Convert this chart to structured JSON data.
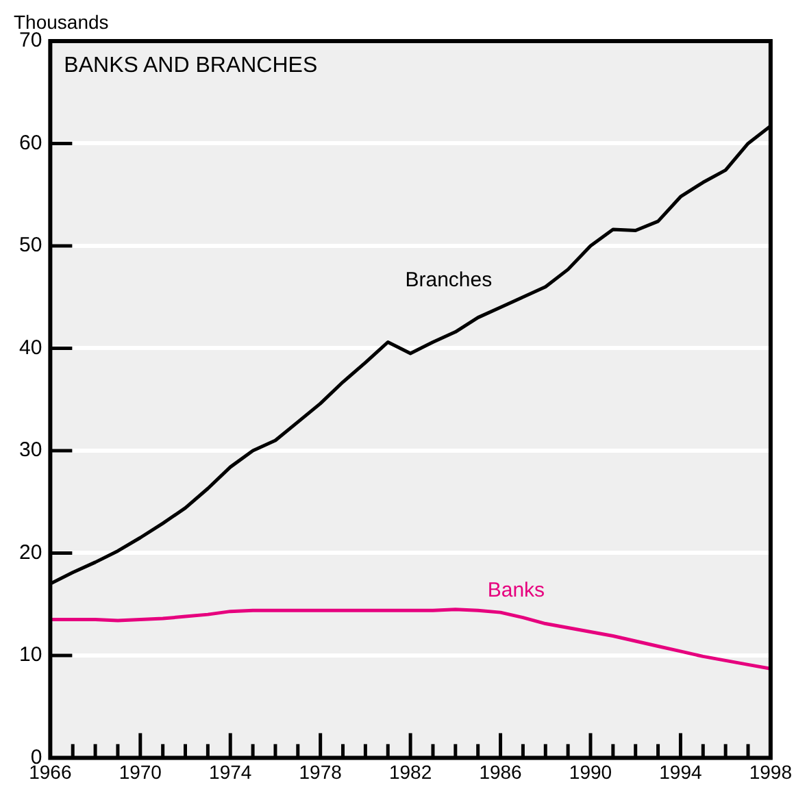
{
  "chart_data": {
    "type": "line",
    "title": "BANKS AND BRANCHES",
    "ylabel": "Thousands",
    "x": [
      1966,
      1967,
      1968,
      1969,
      1970,
      1971,
      1972,
      1973,
      1974,
      1975,
      1976,
      1977,
      1978,
      1979,
      1980,
      1981,
      1982,
      1983,
      1984,
      1985,
      1986,
      1987,
      1988,
      1989,
      1990,
      1991,
      1992,
      1993,
      1994,
      1995,
      1996,
      1997,
      1998
    ],
    "series": [
      {
        "name": "Branches",
        "color": "#000000",
        "values": [
          17.0,
          18.1,
          19.1,
          20.2,
          21.5,
          22.9,
          24.4,
          26.3,
          28.4,
          30.0,
          31.0,
          32.8,
          34.6,
          36.7,
          38.6,
          40.6,
          39.5,
          40.6,
          41.6,
          43.0,
          44.0,
          45.0,
          46.0,
          47.7,
          50.0,
          51.6,
          51.5,
          52.4,
          54.8,
          56.2,
          57.4,
          60.0,
          61.7
        ]
      },
      {
        "name": "Banks",
        "color": "#e6007e",
        "values": [
          13.5,
          13.5,
          13.5,
          13.4,
          13.5,
          13.6,
          13.8,
          14.0,
          14.3,
          14.4,
          14.4,
          14.4,
          14.4,
          14.4,
          14.4,
          14.4,
          14.4,
          14.4,
          14.5,
          14.4,
          14.2,
          13.7,
          13.1,
          12.7,
          12.3,
          11.9,
          11.4,
          10.9,
          10.4,
          9.9,
          9.5,
          9.1,
          8.7
        ]
      }
    ],
    "xlim": [
      1966,
      1998
    ],
    "xticks": [
      1966,
      {
        "value": 1967,
        "label": null
      },
      {
        "value": 1968,
        "label": null
      },
      {
        "value": 1969,
        "label": null
      },
      1970,
      {
        "value": 1971,
        "label": null
      },
      {
        "value": 1972,
        "label": null
      },
      {
        "value": 1973,
        "label": null
      },
      1974,
      {
        "value": 1975,
        "label": null
      },
      {
        "value": 1976,
        "label": null
      },
      {
        "value": 1977,
        "label": null
      },
      1978,
      {
        "value": 1979,
        "label": null
      },
      {
        "value": 1980,
        "label": null
      },
      {
        "value": 1981,
        "label": null
      },
      1982,
      {
        "value": 1983,
        "label": null
      },
      {
        "value": 1984,
        "label": null
      },
      {
        "value": 1985,
        "label": null
      },
      1986,
      {
        "value": 1987,
        "label": null
      },
      {
        "value": 1988,
        "label": null
      },
      {
        "value": 1989,
        "label": null
      },
      1990,
      {
        "value": 1991,
        "label": null
      },
      {
        "value": 1992,
        "label": null
      },
      {
        "value": 1993,
        "label": null
      },
      1994,
      {
        "value": 1995,
        "label": null
      },
      {
        "value": 1996,
        "label": null
      },
      {
        "value": 1997,
        "label": null
      },
      1998
    ],
    "ylim": [
      0,
      70
    ],
    "yticks": [
      0,
      10,
      20,
      30,
      40,
      50,
      60,
      70
    ],
    "grid": "y",
    "legend": false,
    "marker": "none",
    "line_style": "solid"
  }
}
